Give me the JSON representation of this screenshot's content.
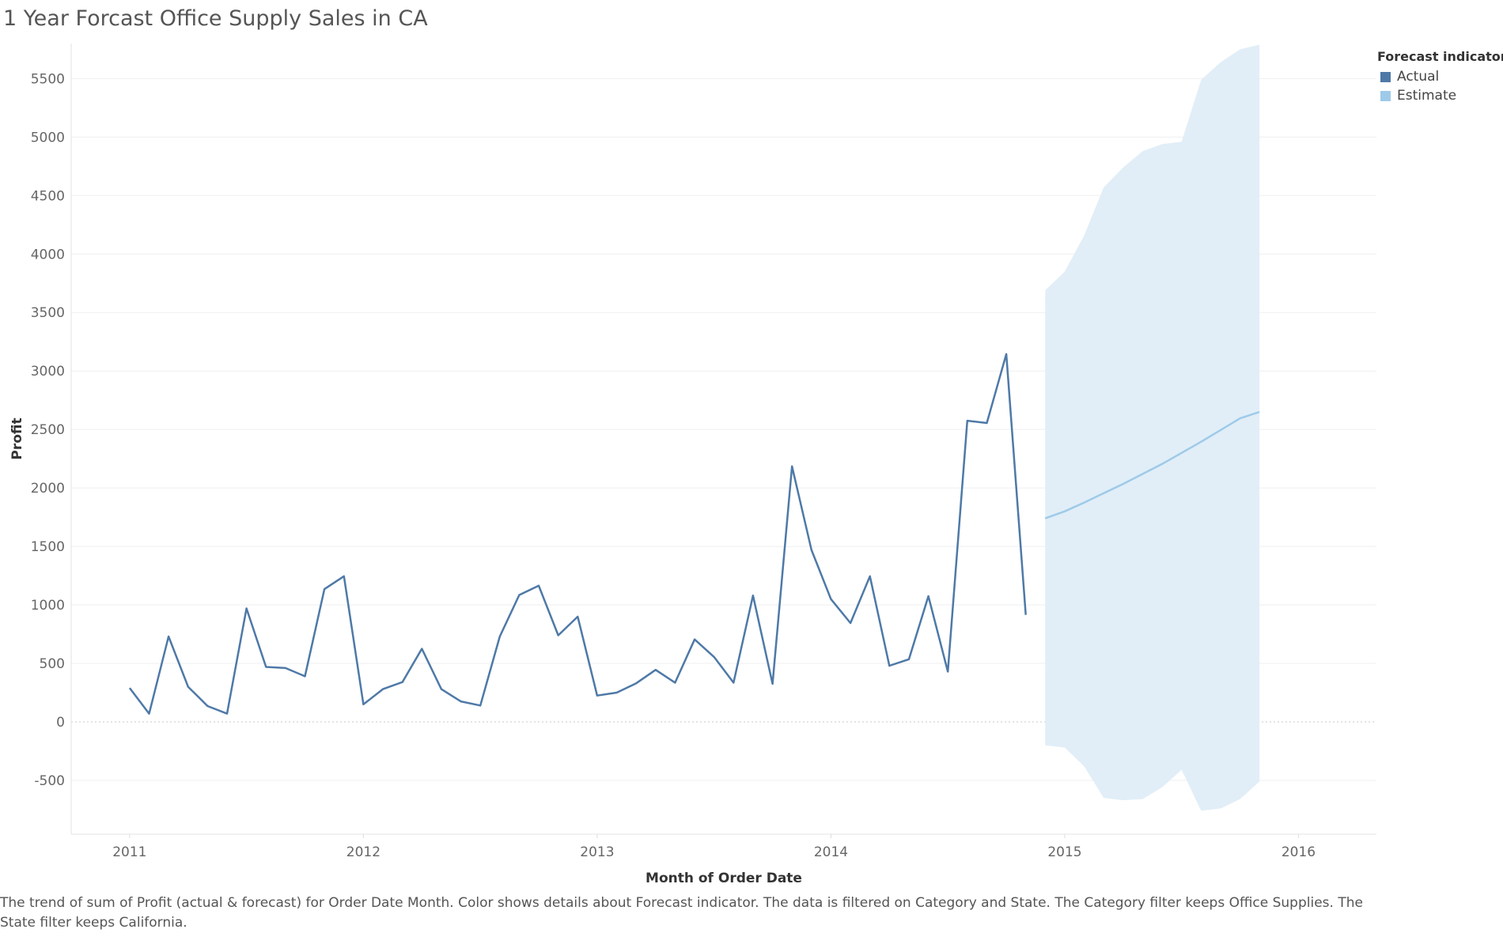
{
  "title": "1 Year Forcast Office Supply Sales in CA",
  "legend": {
    "title": "Forecast indicator",
    "items": [
      {
        "label": "Actual",
        "color": "#4e79a7"
      },
      {
        "label": "Estimate",
        "color": "#9ecae9"
      }
    ]
  },
  "caption": "The trend of sum of Profit (actual & forecast)  for Order Date Month.  Color shows details about Forecast indicator. The data is filtered on Category and State. The Category filter keeps Office Supplies. The State filter keeps California.",
  "chart_data": {
    "type": "line",
    "xlabel": "Month of Order Date",
    "ylabel": "Profit",
    "x_tick_labels": [
      "2011",
      "2012",
      "2013",
      "2014",
      "2015",
      "2016"
    ],
    "y_tick_labels": [
      "-500",
      "0",
      "500",
      "1000",
      "1500",
      "2000",
      "2500",
      "3000",
      "3500",
      "4000",
      "4500",
      "5000",
      "5500"
    ],
    "ylim": [
      -960,
      5800
    ],
    "xlim": [
      "2010-10",
      "2016-05"
    ],
    "grid": true,
    "legend_position": "top-right",
    "series": [
      {
        "name": "Actual",
        "color": "#4e79a7",
        "points": [
          [
            "2011-01",
            290
          ],
          [
            "2011-02",
            70
          ],
          [
            "2011-03",
            730
          ],
          [
            "2011-04",
            300
          ],
          [
            "2011-05",
            135
          ],
          [
            "2011-06",
            70
          ],
          [
            "2011-07",
            970
          ],
          [
            "2011-08",
            470
          ],
          [
            "2011-09",
            460
          ],
          [
            "2011-10",
            390
          ],
          [
            "2011-11",
            1135
          ],
          [
            "2011-12",
            1245
          ],
          [
            "2012-01",
            150
          ],
          [
            "2012-02",
            280
          ],
          [
            "2012-03",
            340
          ],
          [
            "2012-04",
            625
          ],
          [
            "2012-05",
            280
          ],
          [
            "2012-06",
            175
          ],
          [
            "2012-07",
            140
          ],
          [
            "2012-08",
            730
          ],
          [
            "2012-09",
            1085
          ],
          [
            "2012-10",
            1165
          ],
          [
            "2012-11",
            740
          ],
          [
            "2012-12",
            900
          ],
          [
            "2013-01",
            225
          ],
          [
            "2013-02",
            250
          ],
          [
            "2013-03",
            330
          ],
          [
            "2013-04",
            445
          ],
          [
            "2013-05",
            335
          ],
          [
            "2013-06",
            705
          ],
          [
            "2013-07",
            555
          ],
          [
            "2013-08",
            335
          ],
          [
            "2013-09",
            1080
          ],
          [
            "2013-10",
            325
          ],
          [
            "2013-11",
            2185
          ],
          [
            "2013-12",
            1470
          ],
          [
            "2014-01",
            1050
          ],
          [
            "2014-02",
            845
          ],
          [
            "2014-03",
            1245
          ],
          [
            "2014-04",
            480
          ],
          [
            "2014-05",
            535
          ],
          [
            "2014-06",
            1075
          ],
          [
            "2014-07",
            430
          ],
          [
            "2014-08",
            2575
          ],
          [
            "2014-09",
            2555
          ],
          [
            "2014-10",
            3145
          ],
          [
            "2014-11",
            915
          ]
        ]
      },
      {
        "name": "Estimate",
        "color": "#9ecae9",
        "points": [
          [
            "2014-12",
            1740
          ],
          [
            "2015-01",
            1800
          ],
          [
            "2015-02",
            1875
          ],
          [
            "2015-03",
            1955
          ],
          [
            "2015-04",
            2035
          ],
          [
            "2015-05",
            2120
          ],
          [
            "2015-06",
            2205
          ],
          [
            "2015-07",
            2300
          ],
          [
            "2015-08",
            2395
          ],
          [
            "2015-09",
            2495
          ],
          [
            "2015-10",
            2595
          ],
          [
            "2015-11",
            2650
          ]
        ],
        "band_upper": [
          3690,
          3850,
          4160,
          4570,
          4740,
          4880,
          4940,
          4960,
          5490,
          5640,
          5750,
          5790
        ],
        "band_lower": [
          -200,
          -220,
          -380,
          -650,
          -670,
          -660,
          -560,
          -410,
          -760,
          -740,
          -660,
          -510
        ],
        "band_color": "#e1eef7"
      }
    ]
  }
}
